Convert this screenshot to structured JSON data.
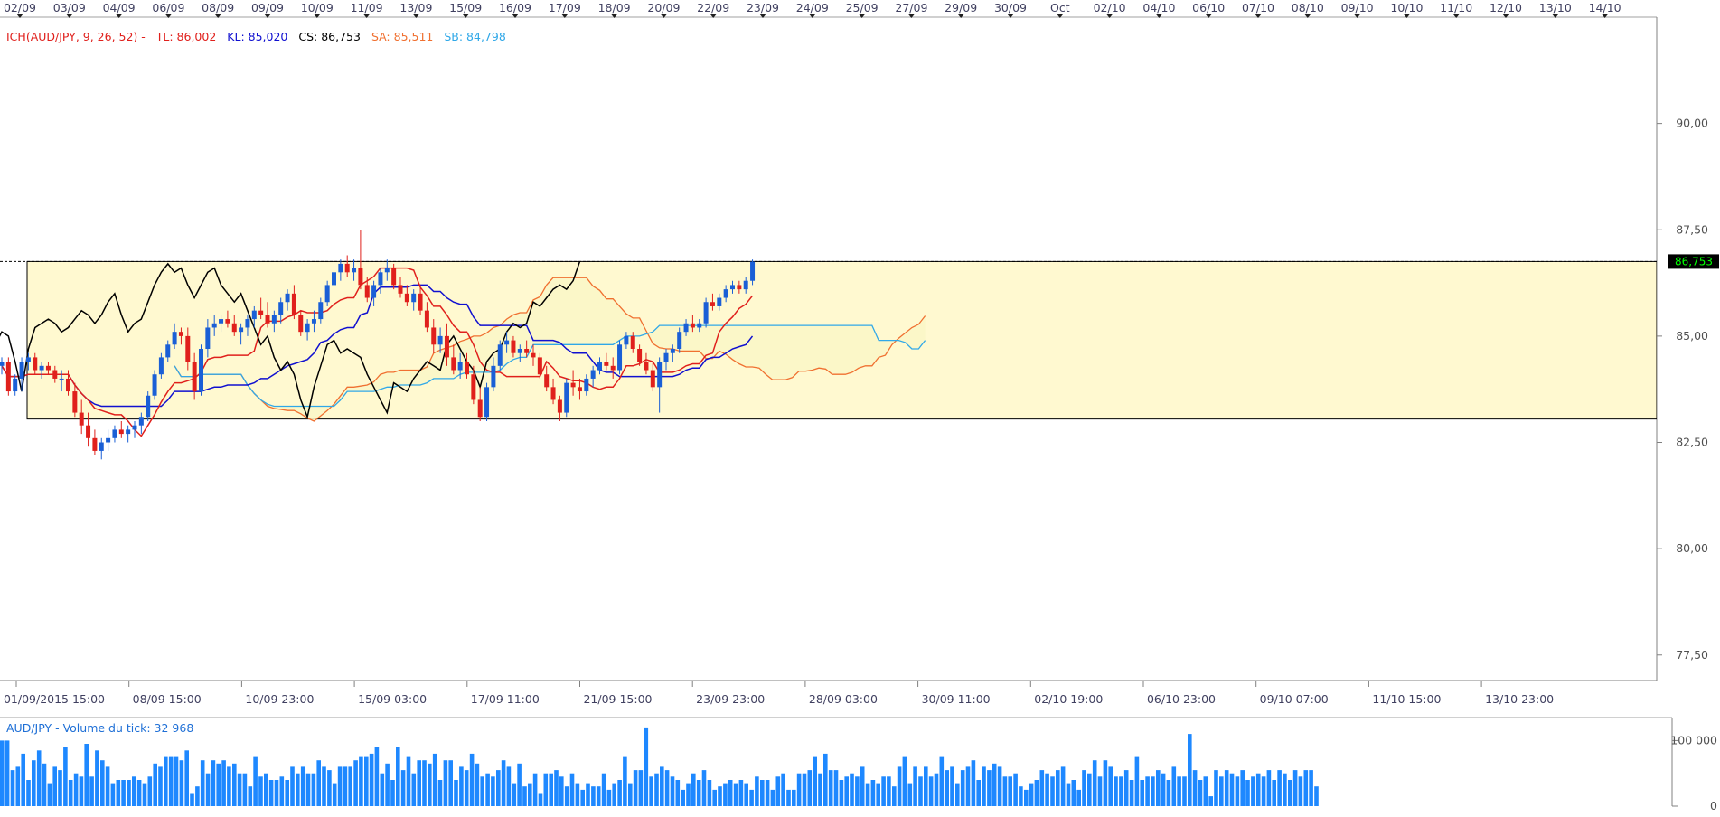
{
  "chart_data": {
    "type": "candlestick",
    "symbol": "AUD/JPY",
    "top_dates": [
      "02/09",
      "03/09",
      "04/09",
      "06/09",
      "08/09",
      "09/09",
      "10/09",
      "11/09",
      "13/09",
      "15/09",
      "16/09",
      "17/09",
      "18/09",
      "20/09",
      "22/09",
      "23/09",
      "24/09",
      "25/09",
      "27/09",
      "29/09",
      "30/09",
      "Oct",
      "02/10",
      "04/10",
      "06/10",
      "07/10",
      "08/10",
      "09/10",
      "10/10",
      "11/10",
      "12/10",
      "13/10",
      "14/10"
    ],
    "bottom_dates": [
      "01/09/2015 15:00",
      "08/09 15:00",
      "10/09 23:00",
      "15/09 03:00",
      "17/09 11:00",
      "21/09 15:00",
      "23/09 23:00",
      "28/09 03:00",
      "30/09 11:00",
      "02/10 19:00",
      "06/10 23:00",
      "09/10 07:00",
      "11/10 15:00",
      "13/10 23:00"
    ],
    "y_ticks": [
      "90,00",
      "87,50",
      "85,00",
      "82,50",
      "80,00",
      "77,50"
    ],
    "y_tick_values": [
      90,
      87.5,
      85,
      82.5,
      80,
      77.5
    ],
    "ylim": [
      76.9,
      92.5
    ],
    "current_price": "86,753",
    "current_price_value": 86.753,
    "range_box": {
      "high": 86.753,
      "low": 83.05
    },
    "indicator": {
      "label": "ICH(AUD/JPY, 9, 26, 52) -",
      "tl_label": "TL: 86,002",
      "kl_label": "KL: 85,020",
      "cs_label": "CS: 86,753",
      "sa_label": "SA: 85,511",
      "sb_label": "SB: 84,798"
    },
    "colors": {
      "up": "#1a5fd6",
      "down": "#e0201c",
      "tenkan": "#e0201c",
      "kijun": "#1010d0",
      "chikou": "#000000",
      "senkou_a": "#f07030",
      "senkou_b": "#30a8e8",
      "cloud_fill": "#fbf6c6",
      "range_fill": "#fff9d0",
      "volume": "#1e88ff",
      "price_tag_bg": "#000000",
      "price_tag_fg": "#00ff00"
    },
    "volume": {
      "label": "AUD/JPY - Volume du tick: 32 968",
      "ticks": [
        "100 000",
        "0"
      ],
      "tick_values": [
        100000,
        0
      ],
      "ylim": [
        0,
        135000
      ],
      "values": [
        100000,
        100000,
        55000,
        60000,
        80000,
        40000,
        70000,
        85000,
        65000,
        35000,
        60000,
        55000,
        90000,
        40000,
        50000,
        45000,
        95000,
        45000,
        85000,
        70000,
        60000,
        35000,
        40000,
        40000,
        40000,
        45000,
        40000,
        35000,
        45000,
        65000,
        60000,
        75000,
        75000,
        75000,
        70000,
        85000,
        20000,
        30000,
        70000,
        50000,
        70000,
        65000,
        70000,
        60000,
        65000,
        50000,
        50000,
        30000,
        75000,
        45000,
        50000,
        40000,
        40000,
        45000,
        40000,
        60000,
        50000,
        60000,
        50000,
        50000,
        70000,
        60000,
        55000,
        35000,
        60000,
        60000,
        60000,
        70000,
        75000,
        75000,
        80000,
        90000,
        50000,
        65000,
        40000,
        90000,
        55000,
        75000,
        50000,
        70000,
        70000,
        65000,
        80000,
        40000,
        70000,
        70000,
        40000,
        60000,
        55000,
        80000,
        65000,
        45000,
        50000,
        45000,
        55000,
        70000,
        60000,
        35000,
        65000,
        30000,
        35000,
        50000,
        20000,
        50000,
        50000,
        55000,
        45000,
        30000,
        50000,
        35000,
        25000,
        35000,
        30000,
        30000,
        50000,
        25000,
        35000,
        40000,
        75000,
        35000,
        55000,
        55000,
        120000,
        45000,
        50000,
        60000,
        55000,
        45000,
        40000,
        25000,
        35000,
        50000,
        40000,
        55000,
        40000,
        25000,
        30000,
        35000,
        40000,
        35000,
        40000,
        35000,
        25000,
        45000,
        40000,
        40000,
        25000,
        45000,
        50000,
        25000,
        25000,
        50000,
        50000,
        55000,
        75000,
        50000,
        80000,
        55000,
        55000,
        40000,
        45000,
        50000,
        45000,
        60000,
        35000,
        40000,
        35000,
        45000,
        45000,
        30000,
        60000,
        75000,
        35000,
        60000,
        45000,
        60000,
        45000,
        50000,
        75000,
        55000,
        60000,
        35000,
        55000,
        60000,
        70000,
        40000,
        60000,
        55000,
        65000,
        60000,
        45000,
        45000,
        50000,
        30000,
        25000,
        35000,
        40000,
        55000,
        50000,
        45000,
        55000,
        60000,
        35000,
        40000,
        25000,
        55000,
        50000,
        70000,
        45000,
        70000,
        60000,
        45000,
        45000,
        55000,
        40000,
        75000,
        40000,
        45000,
        45000,
        55000,
        50000,
        40000,
        60000,
        45000,
        45000,
        110000,
        55000,
        40000,
        45000,
        15000,
        55000,
        45000,
        55000,
        50000,
        45000,
        55000,
        40000,
        45000,
        50000,
        45000,
        55000,
        40000,
        55000,
        50000,
        40000,
        55000,
        45000,
        55000,
        55000,
        30000
      ]
    },
    "candles": [
      [
        84.3,
        84.5,
        84.1,
        84.4
      ],
      [
        84.4,
        84.5,
        83.6,
        83.7
      ],
      [
        83.7,
        84.1,
        83.6,
        84.0
      ],
      [
        84.0,
        84.5,
        83.7,
        84.4
      ],
      [
        84.4,
        84.6,
        84.2,
        84.5
      ],
      [
        84.5,
        84.6,
        84.1,
        84.2
      ],
      [
        84.2,
        84.4,
        84.0,
        84.3
      ],
      [
        84.3,
        84.4,
        84.1,
        84.2
      ],
      [
        84.2,
        84.3,
        83.9,
        84.0
      ],
      [
        84.0,
        84.2,
        83.7,
        84.0
      ],
      [
        84.0,
        84.2,
        83.6,
        83.7
      ],
      [
        83.7,
        83.9,
        83.1,
        83.2
      ],
      [
        83.2,
        83.5,
        82.7,
        82.9
      ],
      [
        82.9,
        83.2,
        82.4,
        82.6
      ],
      [
        82.6,
        82.8,
        82.2,
        82.3
      ],
      [
        82.3,
        82.6,
        82.1,
        82.5
      ],
      [
        82.5,
        82.8,
        82.3,
        82.6
      ],
      [
        82.6,
        82.9,
        82.5,
        82.8
      ],
      [
        82.8,
        83.0,
        82.6,
        82.7
      ],
      [
        82.7,
        82.9,
        82.5,
        82.8
      ],
      [
        82.8,
        83.0,
        82.6,
        82.9
      ],
      [
        82.9,
        83.2,
        82.7,
        83.1
      ],
      [
        83.1,
        83.7,
        83.0,
        83.6
      ],
      [
        83.6,
        84.2,
        83.5,
        84.1
      ],
      [
        84.1,
        84.6,
        84.0,
        84.5
      ],
      [
        84.5,
        84.9,
        84.4,
        84.8
      ],
      [
        84.8,
        85.3,
        84.7,
        85.1
      ],
      [
        85.1,
        85.2,
        84.8,
        85.0
      ],
      [
        85.0,
        85.2,
        84.2,
        84.4
      ],
      [
        84.4,
        84.6,
        83.5,
        83.7
      ],
      [
        83.7,
        84.8,
        83.6,
        84.7
      ],
      [
        84.7,
        85.4,
        84.5,
        85.2
      ],
      [
        85.2,
        85.5,
        85.0,
        85.3
      ],
      [
        85.3,
        85.5,
        85.1,
        85.4
      ],
      [
        85.4,
        85.6,
        85.2,
        85.3
      ],
      [
        85.3,
        85.5,
        85.0,
        85.1
      ],
      [
        85.1,
        85.3,
        84.8,
        85.2
      ],
      [
        85.2,
        85.5,
        85.0,
        85.4
      ],
      [
        85.4,
        85.7,
        85.2,
        85.6
      ],
      [
        85.6,
        85.9,
        85.4,
        85.5
      ],
      [
        85.5,
        85.8,
        85.2,
        85.3
      ],
      [
        85.3,
        85.6,
        85.1,
        85.5
      ],
      [
        85.5,
        85.9,
        85.3,
        85.8
      ],
      [
        85.8,
        86.1,
        85.6,
        86.0
      ],
      [
        86.0,
        86.2,
        85.4,
        85.5
      ],
      [
        85.5,
        85.6,
        85.0,
        85.1
      ],
      [
        85.1,
        85.4,
        84.9,
        85.3
      ],
      [
        85.3,
        85.6,
        85.1,
        85.4
      ],
      [
        85.4,
        85.9,
        85.3,
        85.8
      ],
      [
        85.8,
        86.3,
        85.7,
        86.2
      ],
      [
        86.2,
        86.6,
        86.1,
        86.5
      ],
      [
        86.5,
        86.8,
        86.3,
        86.7
      ],
      [
        86.7,
        86.9,
        86.4,
        86.5
      ],
      [
        86.5,
        86.8,
        86.3,
        86.6
      ],
      [
        86.6,
        87.5,
        86.1,
        86.2
      ],
      [
        86.2,
        86.4,
        85.8,
        85.9
      ],
      [
        85.9,
        86.3,
        85.7,
        86.2
      ],
      [
        86.2,
        86.6,
        86.0,
        86.5
      ],
      [
        86.5,
        86.8,
        86.3,
        86.6
      ],
      [
        86.6,
        86.7,
        86.1,
        86.2
      ],
      [
        86.2,
        86.4,
        85.9,
        86.0
      ],
      [
        86.0,
        86.2,
        85.7,
        85.8
      ],
      [
        85.8,
        86.1,
        85.6,
        86.0
      ],
      [
        86.0,
        86.2,
        85.5,
        85.6
      ],
      [
        85.6,
        85.8,
        85.1,
        85.2
      ],
      [
        85.2,
        85.4,
        84.6,
        84.8
      ],
      [
        84.8,
        85.2,
        84.6,
        85.0
      ],
      [
        85.0,
        85.3,
        84.3,
        84.5
      ],
      [
        84.5,
        84.8,
        84.1,
        84.2
      ],
      [
        84.2,
        84.6,
        84.0,
        84.4
      ],
      [
        84.4,
        84.6,
        84.0,
        84.1
      ],
      [
        84.1,
        84.3,
        83.4,
        83.5
      ],
      [
        83.5,
        83.8,
        83.0,
        83.1
      ],
      [
        83.1,
        83.9,
        83.0,
        83.8
      ],
      [
        83.8,
        84.5,
        83.7,
        84.3
      ],
      [
        84.3,
        84.9,
        84.2,
        84.8
      ],
      [
        84.8,
        85.1,
        84.6,
        84.9
      ],
      [
        84.9,
        85.0,
        84.5,
        84.6
      ],
      [
        84.6,
        84.8,
        84.4,
        84.7
      ],
      [
        84.7,
        84.9,
        84.5,
        84.6
      ],
      [
        84.6,
        84.8,
        84.3,
        84.5
      ],
      [
        84.5,
        84.6,
        84.0,
        84.1
      ],
      [
        84.1,
        84.3,
        83.7,
        83.8
      ],
      [
        83.8,
        84.0,
        83.4,
        83.5
      ],
      [
        83.5,
        83.6,
        83.0,
        83.2
      ],
      [
        83.2,
        84.0,
        83.1,
        83.9
      ],
      [
        83.9,
        84.2,
        83.6,
        83.8
      ],
      [
        83.8,
        84.0,
        83.5,
        83.7
      ],
      [
        83.7,
        84.1,
        83.6,
        84.0
      ],
      [
        84.0,
        84.3,
        83.8,
        84.2
      ],
      [
        84.2,
        84.5,
        84.1,
        84.4
      ],
      [
        84.4,
        84.6,
        84.2,
        84.3
      ],
      [
        84.3,
        84.5,
        84.0,
        84.2
      ],
      [
        84.2,
        84.9,
        84.1,
        84.8
      ],
      [
        84.8,
        85.1,
        84.7,
        85.0
      ],
      [
        85.0,
        85.1,
        84.6,
        84.7
      ],
      [
        84.7,
        84.8,
        84.3,
        84.4
      ],
      [
        84.4,
        84.6,
        84.1,
        84.2
      ],
      [
        84.2,
        84.4,
        83.7,
        83.8
      ],
      [
        83.8,
        84.5,
        83.2,
        84.4
      ],
      [
        84.4,
        84.7,
        84.2,
        84.6
      ],
      [
        84.6,
        84.8,
        84.4,
        84.7
      ],
      [
        84.7,
        85.2,
        84.6,
        85.1
      ],
      [
        85.1,
        85.4,
        85.0,
        85.3
      ],
      [
        85.3,
        85.5,
        85.1,
        85.2
      ],
      [
        85.2,
        85.4,
        85.1,
        85.3
      ],
      [
        85.3,
        85.9,
        85.2,
        85.8
      ],
      [
        85.8,
        86.0,
        85.6,
        85.7
      ],
      [
        85.7,
        86.0,
        85.6,
        85.9
      ],
      [
        85.9,
        86.2,
        85.8,
        86.1
      ],
      [
        86.1,
        86.3,
        86.0,
        86.2
      ],
      [
        86.2,
        86.3,
        86.0,
        86.1
      ],
      [
        86.1,
        86.4,
        86.0,
        86.3
      ],
      [
        86.3,
        86.8,
        86.2,
        86.75
      ]
    ]
  }
}
